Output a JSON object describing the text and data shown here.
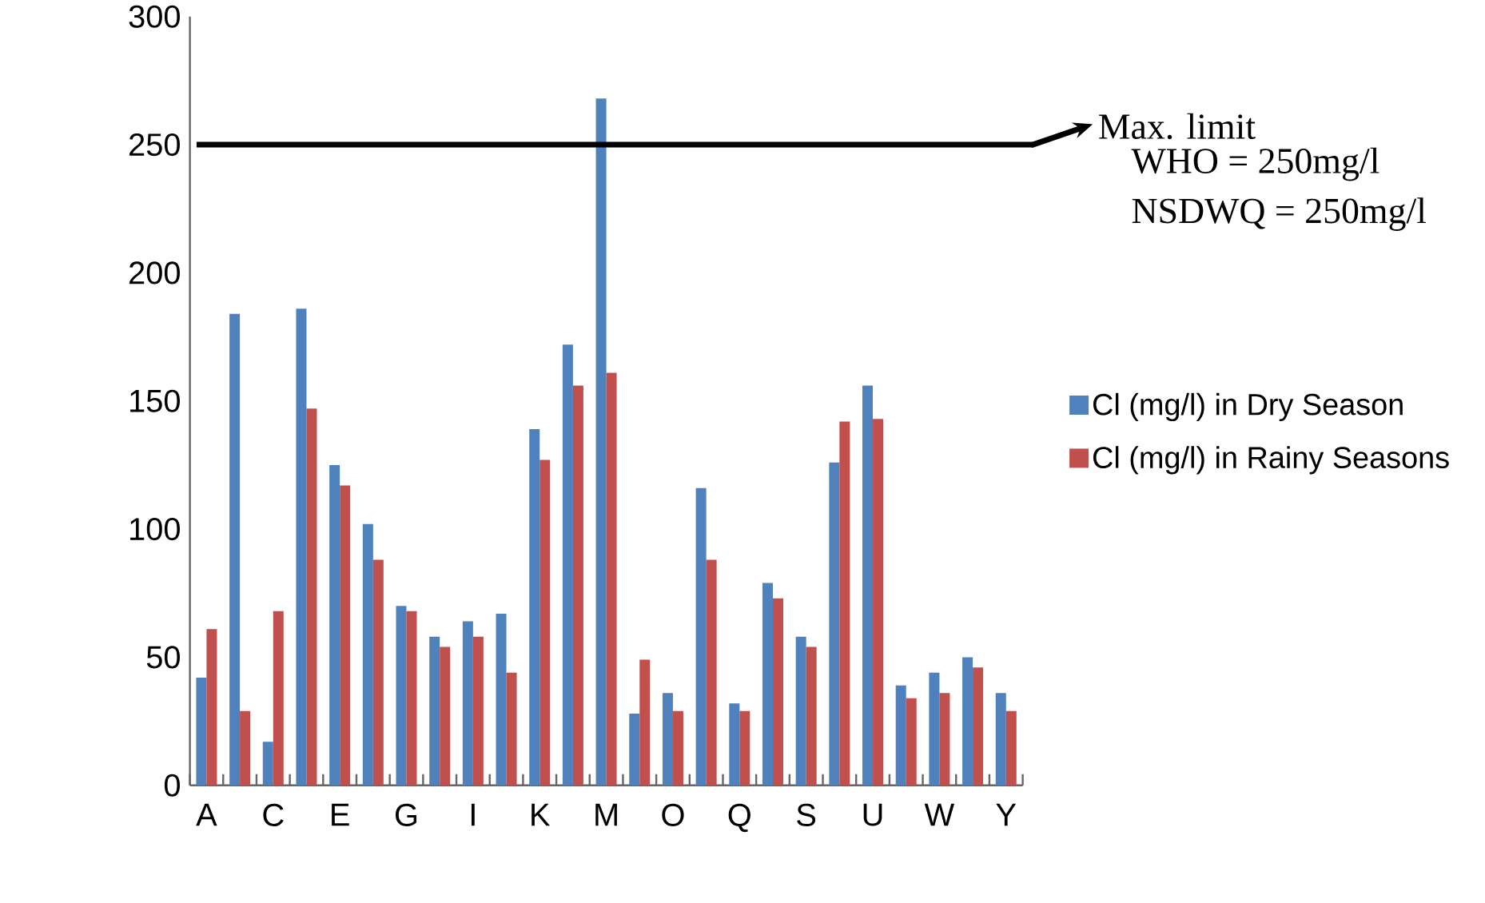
{
  "chart_data": {
    "type": "bar",
    "categories": [
      "A",
      null,
      "C",
      null,
      "E",
      null,
      "G",
      null,
      "I",
      null,
      "K",
      null,
      "M",
      null,
      "O",
      null,
      "Q",
      null,
      "S",
      null,
      "U",
      null,
      "W",
      null,
      "Y"
    ],
    "series": [
      {
        "name": "Cl (mg/l) in Dry Season",
        "color": "#4f81bd",
        "values": [
          42,
          184,
          17,
          186,
          125,
          102,
          70,
          58,
          64,
          67,
          139,
          172,
          268,
          28,
          36,
          116,
          32,
          79,
          58,
          126,
          156,
          39,
          44,
          50,
          36
        ]
      },
      {
        "name": "Cl (mg/l) in Rainy Seasons",
        "color": "#c0504d",
        "values": [
          61,
          29,
          68,
          147,
          117,
          88,
          68,
          54,
          58,
          44,
          127,
          156,
          161,
          49,
          29,
          88,
          29,
          73,
          54,
          142,
          143,
          34,
          36,
          46,
          29
        ]
      }
    ],
    "ylim": [
      0,
      300
    ],
    "yticks": [
      0,
      50,
      100,
      150,
      200,
      250,
      300
    ],
    "legend": "right",
    "ref_lines": [
      {
        "axis": "y",
        "value": 250,
        "label": "Max. limit",
        "color": "#000000"
      }
    ],
    "annotations": [
      "WHO = 250mg/l",
      "NSDWQ = 250mg/l"
    ]
  }
}
